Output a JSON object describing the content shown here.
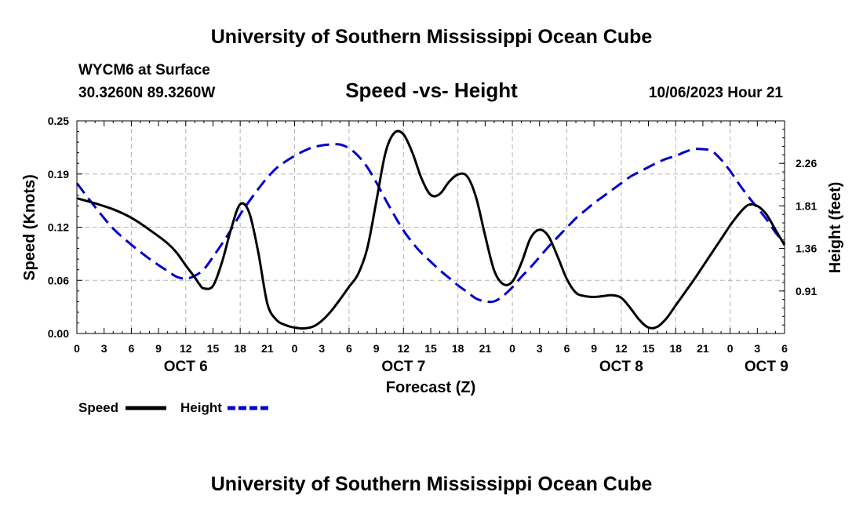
{
  "chart_data": {
    "type": "line",
    "title": "University of Southern Mississippi Ocean Cube",
    "footer_title": "University of Southern Mississippi Ocean Cube",
    "subtitle": "Speed -vs- Height",
    "station": "WYCM6 at Surface",
    "location": "30.3260N  89.3260W",
    "timestamp": "10/06/2023 Hour 21",
    "xlabel": "Forecast (Z)",
    "ylabel_left": "Speed (Knots)",
    "ylabel_right": "Height (feet)",
    "x_range": [
      0,
      78
    ],
    "y_left_range": [
      0,
      0.25
    ],
    "y_right_range": [
      0.46,
      2.71
    ],
    "x_tick_labels": [
      "0",
      "3",
      "6",
      "9",
      "12",
      "15",
      "18",
      "21",
      "0",
      "3",
      "6",
      "9",
      "12",
      "15",
      "18",
      "21",
      "0",
      "3",
      "6",
      "9",
      "12",
      "15",
      "18",
      "21",
      "0",
      "3",
      "6"
    ],
    "y_left_ticks": [
      {
        "value": 0.0,
        "label": "0.00"
      },
      {
        "value": 0.0625,
        "label": "0.06"
      },
      {
        "value": 0.125,
        "label": "0.12"
      },
      {
        "value": 0.1875,
        "label": "0.19"
      },
      {
        "value": 0.25,
        "label": "0.25"
      }
    ],
    "y_right_ticks": [
      {
        "value": 0.91,
        "label": "0.91"
      },
      {
        "value": 1.36,
        "label": "1.36"
      },
      {
        "value": 1.81,
        "label": "1.81"
      },
      {
        "value": 2.26,
        "label": "2.26"
      }
    ],
    "day_labels": [
      {
        "x": 12,
        "label": "OCT 6"
      },
      {
        "x": 36,
        "label": "OCT 7"
      },
      {
        "x": 60,
        "label": "OCT 8"
      },
      {
        "x": 76,
        "label": "OCT 9"
      }
    ],
    "grid": true,
    "legend_position": "bottom-left",
    "series": [
      {
        "name": "Speed",
        "axis": "left",
        "color": "#000000",
        "style": "solid",
        "x": [
          0,
          2,
          4,
          6,
          8,
          10,
          11,
          12,
          13,
          13.5,
          14,
          15,
          16,
          17,
          18,
          19,
          20,
          21,
          22,
          23,
          24,
          25,
          26,
          27,
          28,
          29,
          30,
          31,
          32,
          33,
          34,
          35,
          36,
          37,
          38,
          39,
          40,
          41,
          42,
          43,
          44,
          45,
          46,
          47,
          48,
          49,
          50,
          51,
          52,
          53,
          54,
          55,
          56,
          57,
          58,
          59,
          60,
          61,
          62,
          63,
          64,
          65,
          66,
          67,
          68,
          69,
          70,
          71,
          72,
          73,
          74,
          75,
          76,
          77,
          78
        ],
        "values": [
          0.159,
          0.153,
          0.146,
          0.136,
          0.122,
          0.106,
          0.095,
          0.08,
          0.066,
          0.058,
          0.053,
          0.056,
          0.084,
          0.123,
          0.152,
          0.142,
          0.095,
          0.035,
          0.016,
          0.01,
          0.007,
          0.006,
          0.008,
          0.015,
          0.026,
          0.04,
          0.055,
          0.07,
          0.1,
          0.155,
          0.212,
          0.236,
          0.234,
          0.212,
          0.182,
          0.163,
          0.164,
          0.178,
          0.187,
          0.185,
          0.16,
          0.115,
          0.074,
          0.058,
          0.061,
          0.083,
          0.112,
          0.122,
          0.114,
          0.09,
          0.064,
          0.048,
          0.044,
          0.043,
          0.044,
          0.045,
          0.042,
          0.03,
          0.016,
          0.007,
          0.008,
          0.018,
          0.033,
          0.048,
          0.063,
          0.079,
          0.095,
          0.111,
          0.127,
          0.141,
          0.151,
          0.15,
          0.14,
          0.122,
          0.104
        ]
      },
      {
        "name": "Height",
        "axis": "right",
        "color": "#0000cc",
        "style": "dashed",
        "x": [
          0,
          2,
          4,
          6,
          8,
          10,
          11,
          12,
          13,
          14,
          15,
          16,
          17,
          18,
          19,
          20,
          21,
          22,
          23,
          24,
          25,
          26,
          27,
          28,
          29,
          30,
          31,
          32,
          33,
          34,
          35,
          36,
          37,
          38,
          39,
          40,
          41,
          42,
          43,
          44,
          45,
          46,
          47,
          48,
          49,
          50,
          51,
          52,
          53,
          54,
          55,
          56,
          57,
          58,
          59,
          60,
          61,
          62,
          63,
          64,
          65,
          66,
          67,
          68,
          69,
          70,
          71,
          72,
          73,
          74,
          75,
          76,
          77,
          78
        ],
        "values": [
          2.05,
          1.8,
          1.57,
          1.4,
          1.25,
          1.12,
          1.06,
          1.04,
          1.07,
          1.14,
          1.27,
          1.41,
          1.56,
          1.72,
          1.86,
          1.99,
          2.11,
          2.21,
          2.28,
          2.34,
          2.39,
          2.43,
          2.45,
          2.46,
          2.46,
          2.42,
          2.34,
          2.22,
          2.06,
          1.88,
          1.71,
          1.55,
          1.42,
          1.31,
          1.22,
          1.13,
          1.05,
          0.97,
          0.9,
          0.83,
          0.8,
          0.8,
          0.86,
          0.95,
          1.06,
          1.16,
          1.27,
          1.38,
          1.48,
          1.58,
          1.68,
          1.76,
          1.84,
          1.91,
          1.98,
          2.05,
          2.12,
          2.17,
          2.22,
          2.27,
          2.31,
          2.34,
          2.38,
          2.41,
          2.41,
          2.39,
          2.3,
          2.18,
          2.04,
          1.91,
          1.79,
          1.67,
          1.53,
          1.41
        ]
      }
    ]
  }
}
